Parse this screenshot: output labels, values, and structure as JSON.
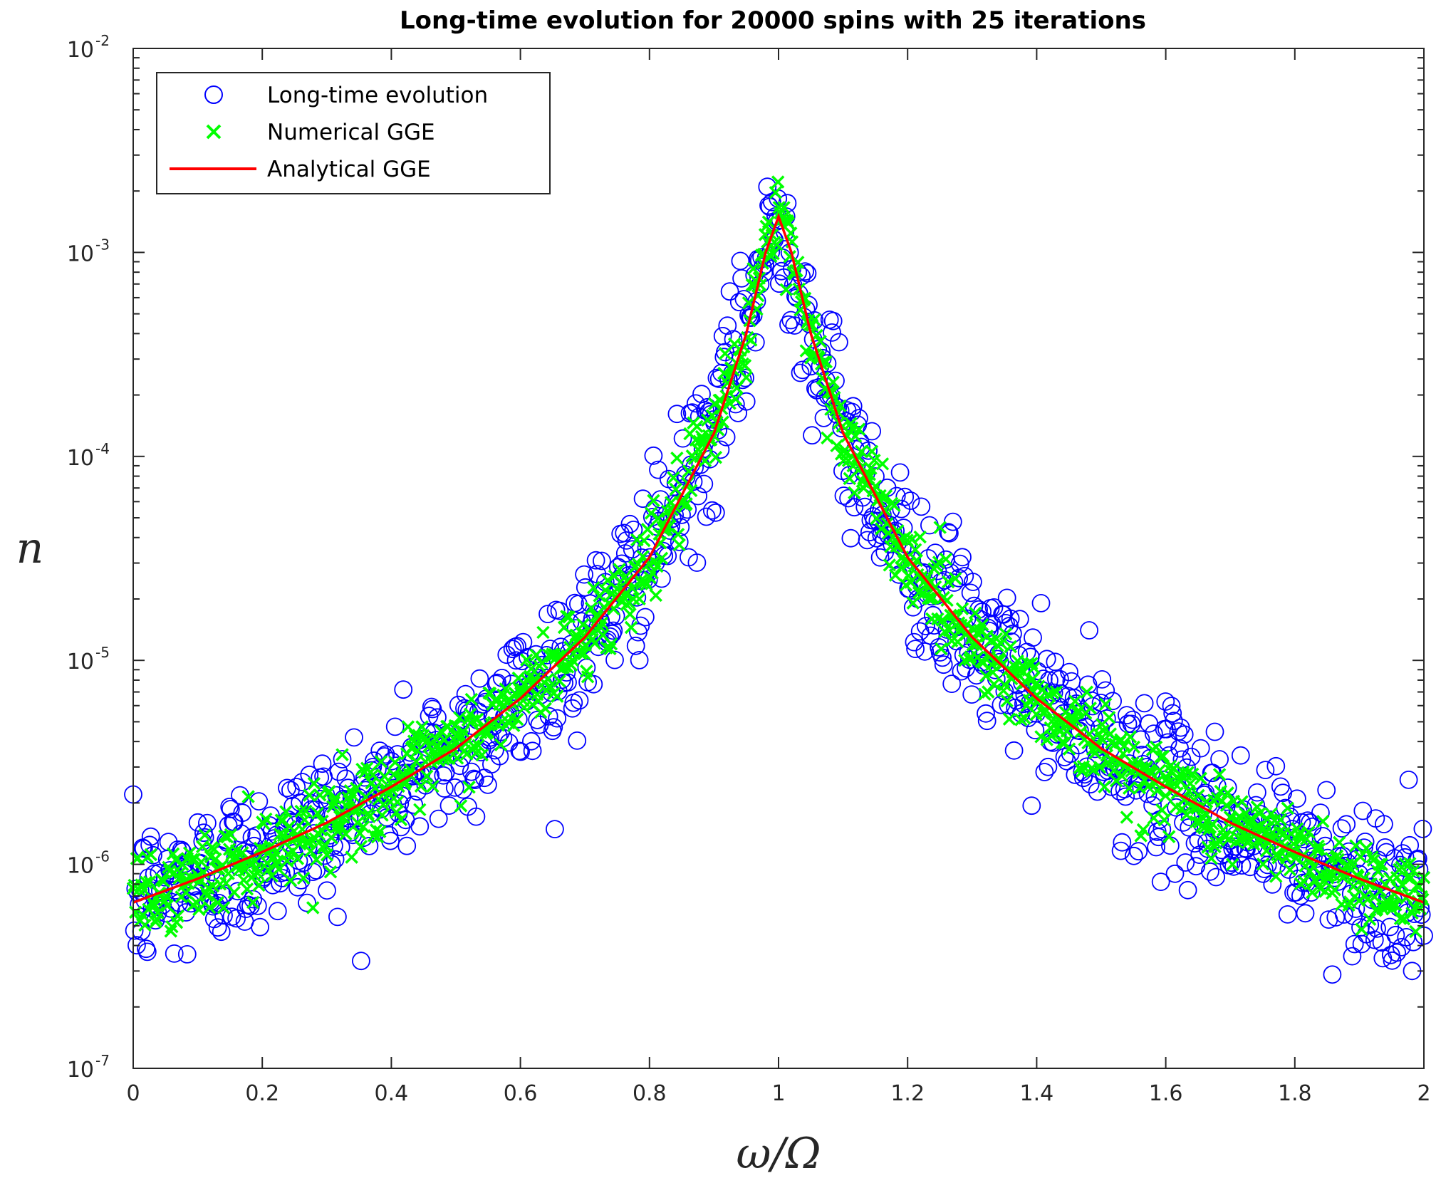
{
  "chart_data": {
    "type": "scatter",
    "title": "Long-time evolution for 20000 spins with 25 iterations",
    "xlabel": "ω/Ω",
    "ylabel": "n",
    "xlim": [
      0,
      2
    ],
    "ylim": [
      1e-07,
      0.01
    ],
    "yscale": "log",
    "grid": false,
    "legend_position": "top-left",
    "x_ticks": [
      "0",
      "0.2",
      "0.4",
      "0.6",
      "0.8",
      "1",
      "1.2",
      "1.4",
      "1.6",
      "1.8",
      "2"
    ],
    "y_ticks": [
      {
        "base": "10",
        "exp": "-7"
      },
      {
        "base": "10",
        "exp": "-6"
      },
      {
        "base": "10",
        "exp": "-5"
      },
      {
        "base": "10",
        "exp": "-4"
      },
      {
        "base": "10",
        "exp": "-3"
      },
      {
        "base": "10",
        "exp": "-2"
      }
    ],
    "series": [
      {
        "name": "Long-time evolution",
        "marker": "circle",
        "color": "#0000ff",
        "x": [
          0.0,
          0.1,
          0.2,
          0.3,
          0.4,
          0.5,
          0.6,
          0.7,
          0.8,
          0.9,
          0.95,
          0.98,
          1.0,
          1.02,
          1.05,
          1.1,
          1.2,
          1.3,
          1.4,
          1.5,
          1.6,
          1.7,
          1.8,
          1.9,
          2.0
        ],
        "y": [
          6.5e-07,
          8.5e-07,
          1.15e-06,
          1.6e-06,
          2.4e-06,
          3.7e-06,
          6.5e-06,
          1.3e-05,
          3.2e-05,
          0.00013,
          0.0004,
          0.001,
          0.0015,
          0.001,
          0.0004,
          0.00013,
          3.2e-05,
          1.3e-05,
          6.5e-06,
          3.7e-06,
          2.4e-06,
          1.6e-06,
          1.15e-06,
          8.5e-07,
          6.5e-07
        ],
        "scatter_spread_decades": 0.42
      },
      {
        "name": "Numerical GGE",
        "marker": "x",
        "color": "#00ff00",
        "x": [
          0.0,
          0.1,
          0.2,
          0.3,
          0.4,
          0.5,
          0.6,
          0.7,
          0.8,
          0.9,
          0.95,
          0.98,
          1.0,
          1.02,
          1.05,
          1.1,
          1.2,
          1.3,
          1.4,
          1.5,
          1.6,
          1.7,
          1.8,
          1.9,
          2.0
        ],
        "y": [
          6.5e-07,
          8.5e-07,
          1.15e-06,
          1.6e-06,
          2.4e-06,
          3.7e-06,
          6.5e-06,
          1.3e-05,
          3.2e-05,
          0.00013,
          0.0004,
          0.001,
          0.0015,
          0.001,
          0.0004,
          0.00013,
          3.2e-05,
          1.3e-05,
          6.5e-06,
          3.7e-06,
          2.4e-06,
          1.6e-06,
          1.15e-06,
          8.5e-07,
          6.5e-07
        ],
        "scatter_spread_decades": 0.22
      },
      {
        "name": "Analytical GGE",
        "marker": "line",
        "color": "#ff0000",
        "x": [
          0.0,
          0.1,
          0.2,
          0.3,
          0.4,
          0.5,
          0.6,
          0.7,
          0.8,
          0.9,
          0.95,
          0.98,
          1.0,
          1.02,
          1.05,
          1.1,
          1.2,
          1.3,
          1.4,
          1.5,
          1.6,
          1.7,
          1.8,
          1.9,
          2.0
        ],
        "y": [
          6.5e-07,
          8.5e-07,
          1.15e-06,
          1.6e-06,
          2.4e-06,
          3.7e-06,
          6.5e-06,
          1.3e-05,
          3.2e-05,
          0.00013,
          0.0004,
          0.001,
          0.0015,
          0.001,
          0.0004,
          0.00013,
          3.2e-05,
          1.3e-05,
          6.5e-06,
          3.7e-06,
          2.4e-06,
          1.6e-06,
          1.15e-06,
          8.5e-07,
          6.5e-07
        ]
      }
    ]
  }
}
